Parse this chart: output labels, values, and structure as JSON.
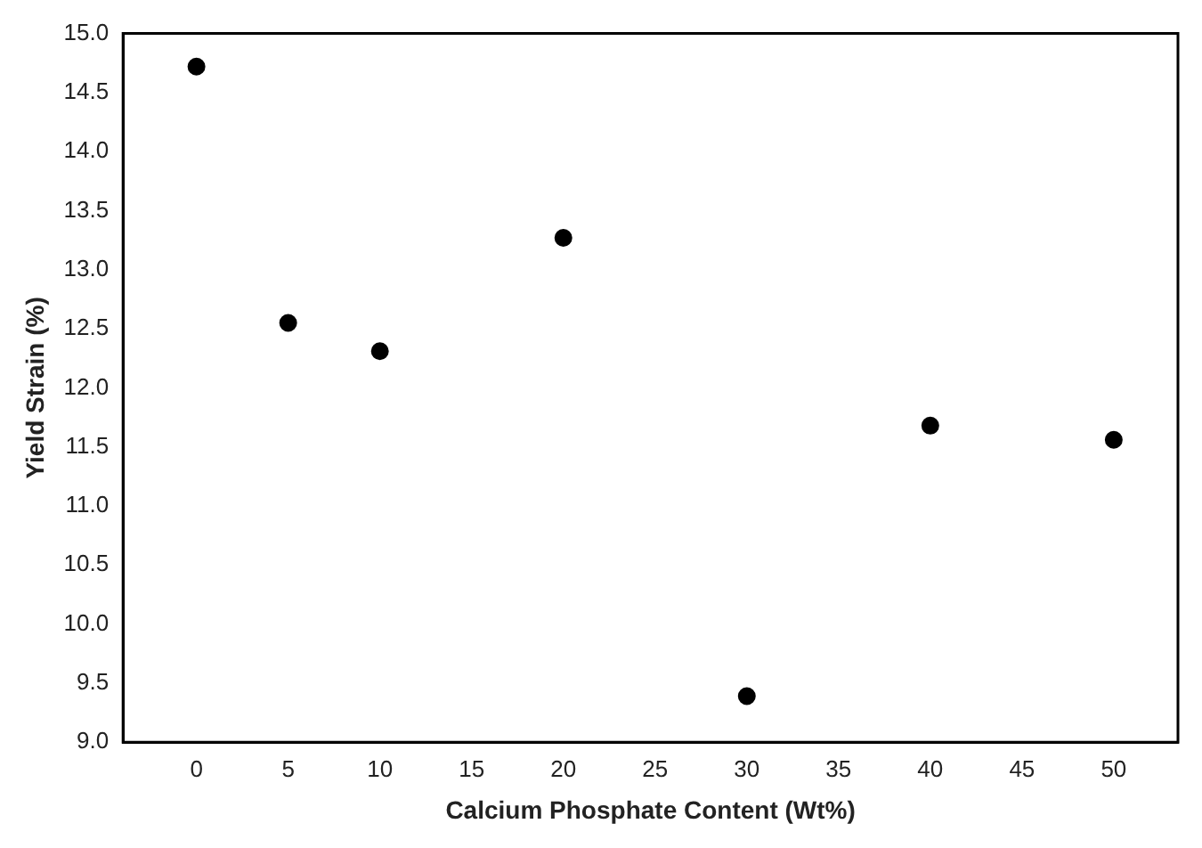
{
  "chart_data": {
    "type": "scatter",
    "xlabel": "Calcium Phosphate Content (Wt%)",
    "ylabel": "Yield Strain (%)",
    "x": [
      0,
      5,
      10,
      20,
      30,
      40,
      50
    ],
    "series": [
      {
        "color": "#000000",
        "values": [
          14.72,
          12.55,
          12.31,
          13.27,
          9.39,
          11.68,
          11.56
        ]
      }
    ],
    "xlim": [
      -4,
      53.5
    ],
    "xticks": [
      0,
      5,
      10,
      15,
      20,
      25,
      30,
      35,
      40,
      45,
      50
    ],
    "ylim": [
      9,
      15
    ],
    "yticks": [
      {
        "value": 9,
        "label": "9.0"
      },
      {
        "value": 9.5,
        "label": "9.5"
      },
      {
        "value": 10,
        "label": "10.0"
      },
      {
        "value": 10.5,
        "label": "10.5"
      },
      {
        "value": 11,
        "label": "11.0"
      },
      {
        "value": 11.5,
        "label": "11.5"
      },
      {
        "value": 12,
        "label": "12.0"
      },
      {
        "value": 12.5,
        "label": "12.5"
      },
      {
        "value": 13,
        "label": "13.0"
      },
      {
        "value": 13.5,
        "label": "13.5"
      },
      {
        "value": 14,
        "label": "14.0"
      },
      {
        "value": 14.5,
        "label": "14.5"
      },
      {
        "value": 15,
        "label": "15.0"
      }
    ],
    "marker": "circle",
    "grid": false,
    "legend": false
  }
}
